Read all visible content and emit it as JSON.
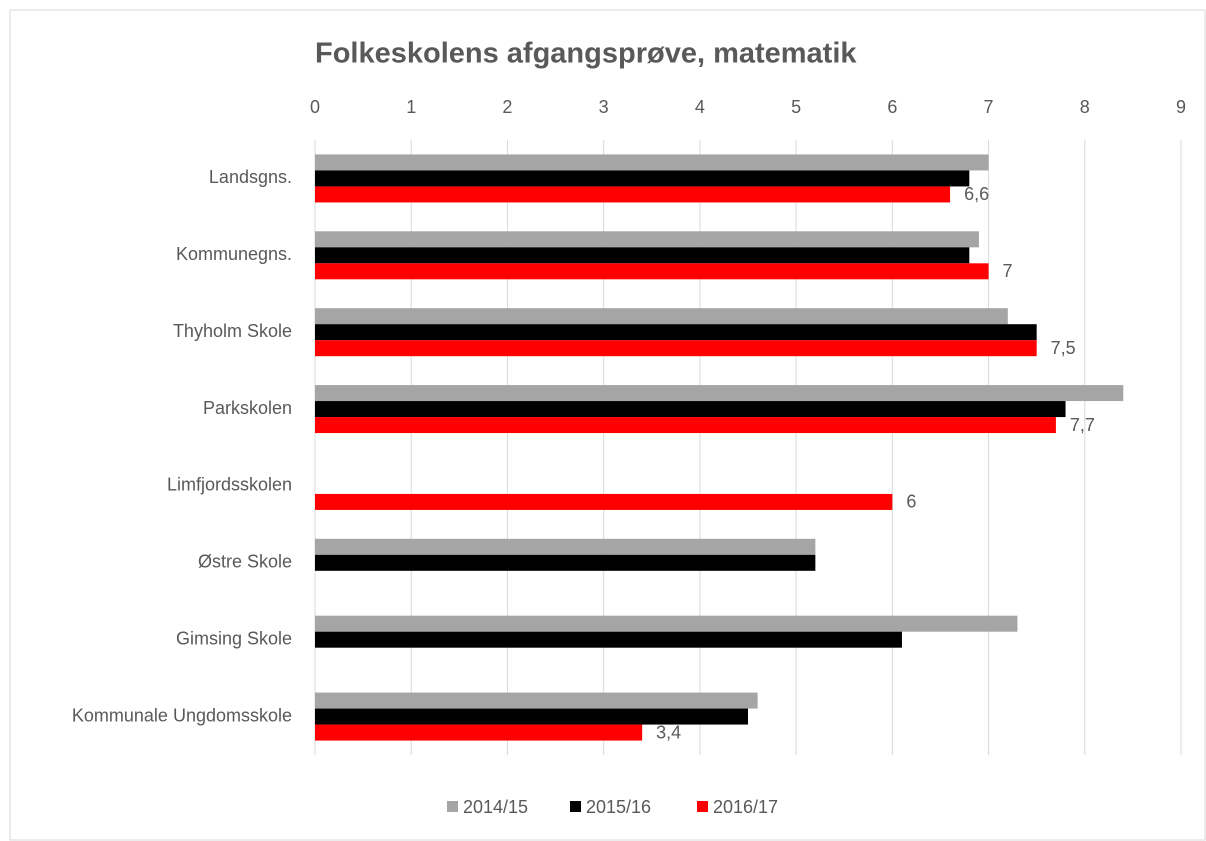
{
  "chart_data": {
    "type": "bar",
    "orientation": "horizontal",
    "title": "Folkeskolens afgangsprøve, matematik",
    "categories": [
      "Landsgns.",
      "Kommunegns.",
      "Thyholm Skole",
      "Parkskolen",
      "Limfjordsskolen",
      "Østre Skole",
      "Gimsing Skole",
      "Kommunale Ungdomsskole"
    ],
    "series": [
      {
        "name": "2014/15",
        "color": "#a5a5a5",
        "values": [
          7.0,
          6.9,
          7.2,
          8.4,
          null,
          5.2,
          7.3,
          4.6
        ]
      },
      {
        "name": "2015/16",
        "color": "#000000",
        "values": [
          6.8,
          6.8,
          7.5,
          7.8,
          null,
          5.2,
          6.1,
          4.5
        ]
      },
      {
        "name": "2016/17",
        "color": "#ff0000",
        "values": [
          6.6,
          7,
          7.5,
          7.7,
          6,
          null,
          null,
          3.4
        ],
        "value_labels": [
          "6,6",
          "7",
          "7,5",
          "7,7",
          "6",
          null,
          null,
          "3,4"
        ]
      }
    ],
    "xlim": [
      0,
      9
    ],
    "xticks": [
      0,
      1,
      2,
      3,
      4,
      5,
      6,
      7,
      8,
      9
    ],
    "grid": true,
    "legend": "bottom"
  }
}
